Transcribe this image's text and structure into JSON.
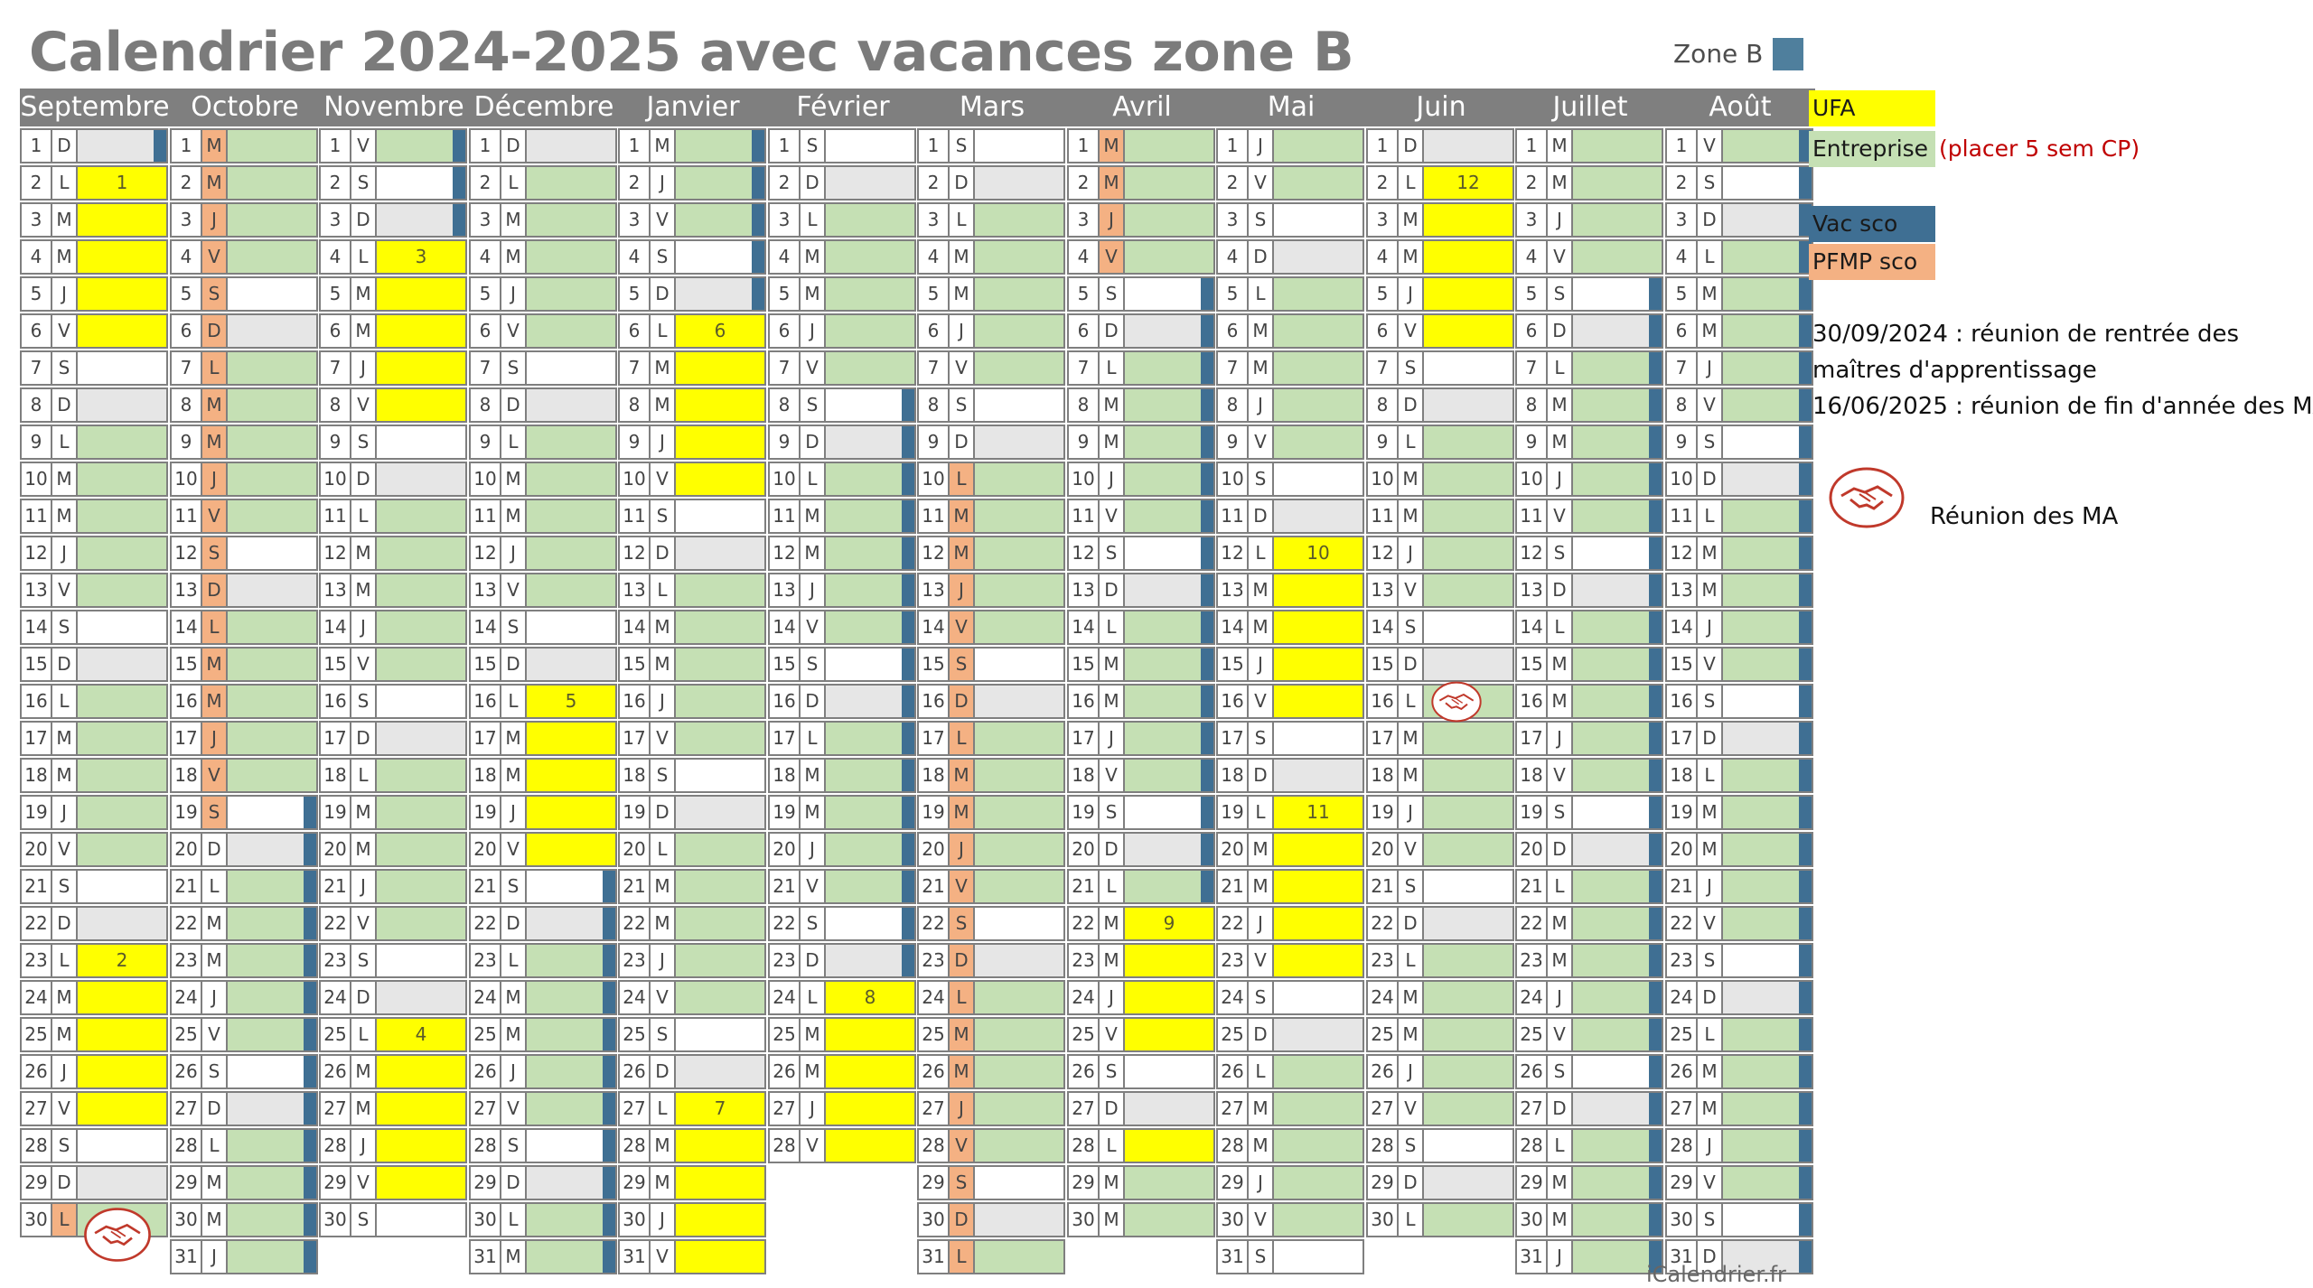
{
  "title": "Calendrier 2024-2025 avec vacances zone B",
  "zone_label": "Zone B",
  "colors": {
    "ufa": "#ffff00",
    "entreprise": "#c5e0b4",
    "vac_sco": "#3f6f93",
    "pfmp": "#f4b183",
    "weekend": "#e6e6e6",
    "header": "#7f7f7f",
    "zone_swatch": "#4f7f9d"
  },
  "legend": {
    "ufa": "UFA",
    "entreprise": "Entreprise",
    "entreprise_note": "(placer 5 sem CP)",
    "vac_sco": "Vac sco",
    "pfmp": "PFMP sco",
    "note_line1": "30/09/2024 : réunion de rentrée des",
    "note_line2": "maîtres d'apprentissage",
    "note_line3": "16/06/2025 : réunion de fin d'année des MA",
    "meeting_label": "Réunion des MA",
    "meeting_icon": "handshake-icon"
  },
  "footer": "iCalendrier.fr",
  "months": [
    {
      "name": "Septembre",
      "days": 30,
      "start": 0,
      "ufa": [
        2,
        3,
        4,
        5,
        6,
        23,
        24,
        25,
        26,
        27
      ],
      "vac": [
        1
      ],
      "pfmp": [
        30
      ],
      "labels": {
        "2": "1",
        "23": "2"
      },
      "meeting": 30
    },
    {
      "name": "Octobre",
      "days": 31,
      "start": 2,
      "ufa": [],
      "vac": [
        19,
        20,
        21,
        22,
        23,
        24,
        25,
        26,
        27,
        28,
        29,
        30,
        31
      ],
      "pfmp": [
        1,
        2,
        3,
        4,
        5,
        6,
        7,
        8,
        9,
        10,
        11,
        12,
        13,
        14,
        15,
        16,
        17,
        18,
        19
      ],
      "labels": {}
    },
    {
      "name": "Novembre",
      "days": 30,
      "start": 5,
      "ufa": [
        4,
        5,
        6,
        7,
        8,
        25,
        26,
        27,
        28,
        29
      ],
      "vac": [
        1,
        2,
        3
      ],
      "pfmp": [],
      "labels": {
        "4": "3",
        "25": "4"
      }
    },
    {
      "name": "Décembre",
      "days": 31,
      "start": 0,
      "ufa": [
        16,
        17,
        18,
        19,
        20
      ],
      "vac": [
        21,
        22,
        23,
        24,
        25,
        26,
        27,
        28,
        29,
        30,
        31
      ],
      "pfmp": [],
      "labels": {
        "16": "5"
      }
    },
    {
      "name": "Janvier",
      "days": 31,
      "start": 3,
      "ufa": [
        6,
        7,
        8,
        9,
        10,
        27,
        28,
        29,
        30,
        31
      ],
      "vac": [
        1,
        2,
        3,
        4,
        5
      ],
      "pfmp": [],
      "labels": {
        "6": "6",
        "27": "7"
      }
    },
    {
      "name": "Février",
      "days": 28,
      "start": 6,
      "ufa": [
        24,
        25,
        26,
        27,
        28
      ],
      "vac": [
        8,
        9,
        10,
        11,
        12,
        13,
        14,
        15,
        16,
        17,
        18,
        19,
        20,
        21,
        22,
        23
      ],
      "pfmp": [],
      "labels": {
        "24": "8"
      }
    },
    {
      "name": "Mars",
      "days": 31,
      "start": 6,
      "ufa": [],
      "vac": [],
      "pfmp": [
        10,
        11,
        12,
        13,
        14,
        15,
        16,
        17,
        18,
        19,
        20,
        21,
        22,
        23,
        24,
        25,
        26,
        27,
        28,
        29,
        30,
        31
      ],
      "labels": {}
    },
    {
      "name": "Avril",
      "days": 30,
      "start": 2,
      "ufa": [
        22,
        23,
        24,
        25,
        28
      ],
      "vac": [
        5,
        6,
        7,
        8,
        9,
        10,
        11,
        12,
        13,
        14,
        15,
        16,
        17,
        18,
        19,
        20,
        21
      ],
      "pfmp": [
        1,
        2,
        3,
        4
      ],
      "labels": {
        "22": "9"
      }
    },
    {
      "name": "Mai",
      "days": 31,
      "start": 4,
      "ufa": [
        12,
        13,
        14,
        15,
        16,
        19,
        20,
        21,
        22,
        23
      ],
      "vac": [],
      "pfmp": [],
      "labels": {
        "12": "10",
        "19": "11"
      }
    },
    {
      "name": "Juin",
      "days": 30,
      "start": 0,
      "ufa": [
        2,
        3,
        4,
        5,
        6
      ],
      "vac": [],
      "pfmp": [],
      "labels": {
        "2": "12"
      },
      "meeting": 16
    },
    {
      "name": "Juillet",
      "days": 31,
      "start": 2,
      "ufa": [],
      "vac": [
        5,
        6,
        7,
        8,
        9,
        10,
        11,
        12,
        13,
        14,
        15,
        16,
        17,
        18,
        19,
        20,
        21,
        22,
        23,
        24,
        25,
        26,
        27,
        28,
        29,
        30,
        31
      ],
      "pfmp": [],
      "labels": {}
    },
    {
      "name": "Août",
      "days": 31,
      "start": 5,
      "ufa": [],
      "vac": [
        1,
        2,
        3,
        4,
        5,
        6,
        7,
        8,
        9,
        10,
        11,
        12,
        13,
        14,
        15,
        16,
        17,
        18,
        19,
        20,
        21,
        22,
        23,
        24,
        25,
        26,
        27,
        28,
        29,
        30,
        31
      ],
      "pfmp": [],
      "labels": {}
    }
  ]
}
